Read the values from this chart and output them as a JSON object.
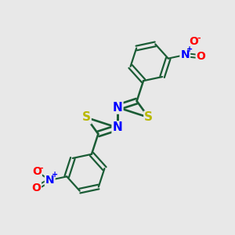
{
  "bg_color": "#e8e8e8",
  "bond_color": "#1a5c35",
  "bond_width": 1.8,
  "S_color": "#b8b800",
  "N_color": "#0000ff",
  "O_color": "#ff0000",
  "figsize": [
    3.0,
    3.0
  ],
  "dpi": 100,
  "xlim": [
    -2.2,
    2.2
  ],
  "ylim": [
    -1.6,
    1.6
  ]
}
